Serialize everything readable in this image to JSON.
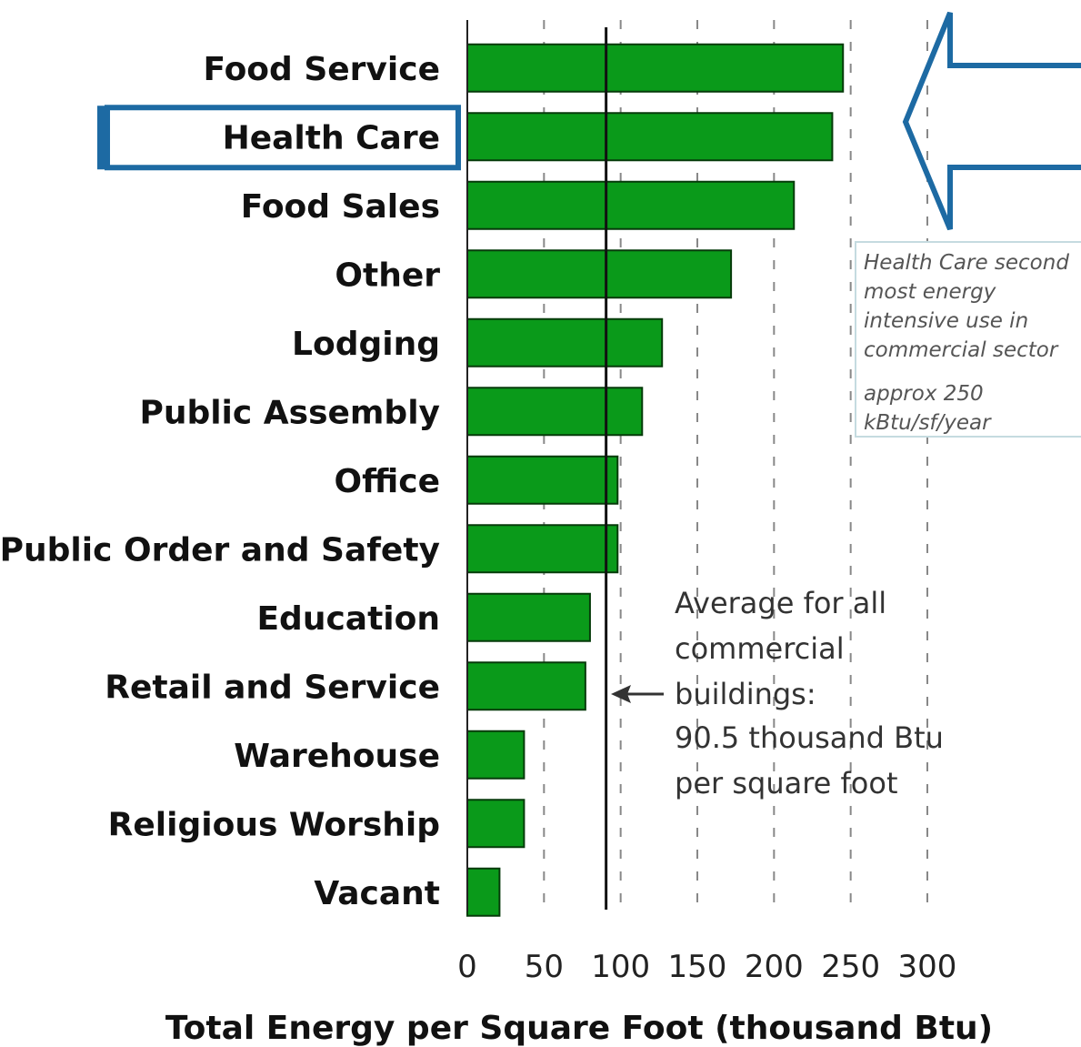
{
  "chart_data": {
    "type": "bar",
    "orientation": "horizontal",
    "categories": [
      "Food Service",
      "Health Care",
      "Food Sales",
      "Other",
      "Lodging",
      "Public Assembly",
      "Office",
      "Public Order and Safety",
      "Education",
      "Retail and Service",
      "Warehouse",
      "Religious Worship",
      "Vacant"
    ],
    "values": [
      245,
      238,
      213,
      172,
      127,
      114,
      98,
      98,
      80,
      77,
      37,
      37,
      21
    ],
    "xlabel": "Total Energy per Square Foot (thousand Btu)",
    "ylabel": "",
    "xlim": [
      0,
      300
    ],
    "xticks": [
      "0",
      "50",
      "100",
      "150",
      "200",
      "250",
      "300"
    ],
    "grid": "vertical dashed",
    "average_line": {
      "value": 90.5,
      "label_lines": [
        "Average for all",
        "commercial",
        "buildings:",
        "90.5 thousand Btu",
        "per square foot"
      ]
    },
    "highlight": {
      "category": "Health Care",
      "callout_lines": [
        "Health Care second",
        "most energy",
        "intensive use in",
        "commercial sector",
        "approx 250",
        "kBtu/sf/year"
      ]
    }
  },
  "colors": {
    "bar_fill": "#0a9a1a",
    "bar_stroke": "#063b0a",
    "highlight": "#1d6aa3",
    "grid": "#888888"
  }
}
